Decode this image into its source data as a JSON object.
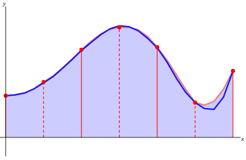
{
  "chart_data": {
    "type": "line",
    "x_label": "x",
    "y_label": "y",
    "x": [
      0,
      0.25,
      0.5,
      0.75,
      1,
      1.25,
      1.5,
      1.75,
      2,
      2.25,
      2.5,
      2.75,
      3,
      3.25,
      3.5,
      3.75,
      4,
      4.25,
      4.5,
      4.75,
      5,
      5.25,
      5.5,
      5.75,
      6
    ],
    "series": [
      {
        "type": "area",
        "color": "#f08080",
        "values": [
          1.1,
          1.12,
          1.17,
          1.28,
          1.46,
          1.62,
          1.83,
          2.06,
          2.31,
          2.53,
          2.72,
          2.85,
          2.9,
          2.9,
          2.83,
          2.66,
          2.38,
          2.05,
          1.66,
          1.27,
          0.92,
          0.85,
          0.95,
          1.27,
          1.75
        ]
      },
      {
        "type": "line",
        "color": "#1010ff",
        "values": [
          1.1,
          1.12,
          1.17,
          1.28,
          1.44,
          1.6,
          1.82,
          2.05,
          2.29,
          2.5,
          2.7,
          2.86,
          2.94,
          2.92,
          2.81,
          2.61,
          2.36,
          2.0,
          1.57,
          1.19,
          0.92,
          0.76,
          0.74,
          1.06,
          1.75
        ]
      },
      {
        "type": "stem",
        "color": "#ff0000",
        "marker": "circle",
        "values": [
          1.1,
          null,
          null,
          null,
          1.46,
          null,
          null,
          null,
          2.31,
          null,
          null,
          null,
          2.9,
          null,
          null,
          null,
          2.38,
          null,
          null,
          null,
          0.92,
          null,
          null,
          null,
          1.75
        ]
      }
    ],
    "xlim": [
      -0.15,
      6.2
    ],
    "ylim": [
      -0.5,
      3.45
    ],
    "xticks": [],
    "yticks": [],
    "tick_labels": false,
    "grid": false
  }
}
